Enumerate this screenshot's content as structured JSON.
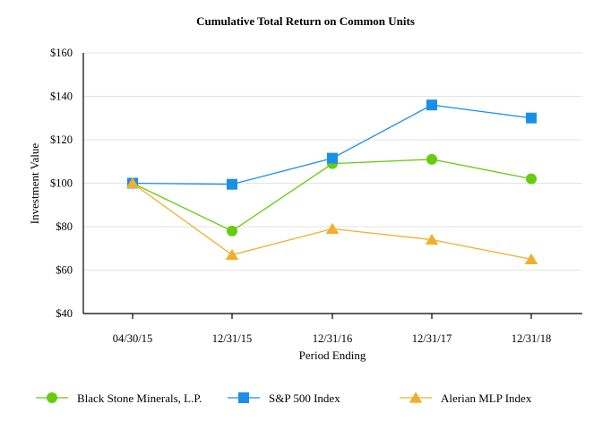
{
  "chart_data": {
    "type": "line",
    "title": "Cumulative Total Return on Common Units",
    "xlabel": "Period Ending",
    "ylabel": "Investment Value",
    "categories": [
      "04/30/15",
      "12/31/15",
      "12/31/16",
      "12/31/17",
      "12/31/18"
    ],
    "ylim": [
      40,
      160
    ],
    "yticks": [
      "$40",
      "$60",
      "$80",
      "$100",
      "$120",
      "$140",
      "$160"
    ],
    "grid": true,
    "legend": "bottom",
    "series": [
      {
        "name": "Black Stone Minerals, L.P.",
        "marker": "circle",
        "color": "#66cc11",
        "values": [
          100,
          78,
          109,
          111,
          102
        ]
      },
      {
        "name": "S&P 500 Index",
        "marker": "square",
        "color": "#1a8fe8",
        "values": [
          100,
          99.5,
          111.5,
          136,
          130
        ]
      },
      {
        "name": "Alerian MLP Index",
        "marker": "triangle",
        "color": "#f0b02c",
        "values": [
          100,
          67,
          79,
          74,
          65
        ]
      }
    ]
  }
}
